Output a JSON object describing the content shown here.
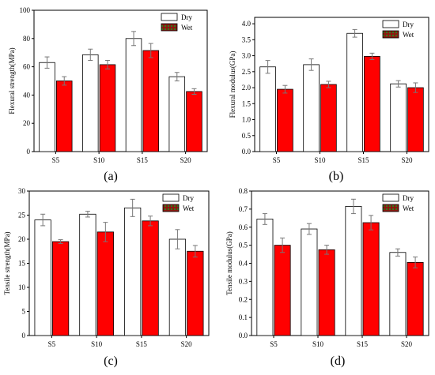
{
  "colors": {
    "dry_fill": "#ffffff",
    "dry_stroke": "#000000",
    "wet_fill": "#ff0000",
    "wet_stroke": "#000000",
    "wet_legend_fill": "#8b1a10",
    "wet_legend_pattern": "#2e7d1f",
    "error_bar": "#777777",
    "artifact_pink": "#f2a0f0",
    "artifact_cyan": "#8ff0f0",
    "axis": "#000000"
  },
  "chart_data": [
    {
      "id": "a",
      "type": "bar",
      "panel_label": "(a)",
      "ylabel": "Flexural strength(MPa)",
      "xlabel": "",
      "categories": [
        "S5",
        "S10",
        "S15",
        "S20"
      ],
      "ylim": [
        0,
        100
      ],
      "yticks": [
        "0",
        "20",
        "40",
        "60",
        "80",
        "100"
      ],
      "series": [
        {
          "name": "Dry",
          "values": [
            63,
            68.5,
            80,
            53
          ],
          "errors": [
            4,
            4,
            5,
            3
          ]
        },
        {
          "name": "Wet",
          "values": [
            50,
            61.5,
            71.5,
            42.5
          ],
          "errors": [
            3,
            3,
            5,
            2
          ]
        }
      ],
      "legend": "top-right",
      "grid": false
    },
    {
      "id": "b",
      "type": "bar",
      "panel_label": "(b)",
      "ylabel": "Flexural modulus(GPa)",
      "xlabel": "",
      "categories": [
        "S5",
        "S10",
        "S15",
        "S20"
      ],
      "ylim": [
        0,
        4.2
      ],
      "yticks": [
        "0.0",
        "0.5",
        "1.0",
        "1.5",
        "2.0",
        "2.5",
        "3.0",
        "3.5",
        "4.0"
      ],
      "series": [
        {
          "name": "Dry",
          "values": [
            2.65,
            2.72,
            3.7,
            2.12
          ],
          "errors": [
            0.2,
            0.18,
            0.12,
            0.1
          ]
        },
        {
          "name": "Wet",
          "values": [
            1.95,
            2.1,
            2.98,
            2.0
          ],
          "errors": [
            0.12,
            0.1,
            0.1,
            0.15
          ]
        }
      ],
      "legend": "top-right",
      "grid": false
    },
    {
      "id": "c",
      "type": "bar",
      "panel_label": "(c)",
      "ylabel": "Tensile strength(MPa)",
      "xlabel": "",
      "categories": [
        "S5",
        "S10",
        "S15",
        "S20"
      ],
      "ylim": [
        0,
        30
      ],
      "yticks": [
        "0",
        "5",
        "10",
        "15",
        "20",
        "25",
        "30"
      ],
      "series": [
        {
          "name": "Dry",
          "values": [
            24,
            25.2,
            26.5,
            20
          ],
          "errors": [
            1.2,
            0.6,
            1.8,
            2
          ]
        },
        {
          "name": "Wet",
          "values": [
            19.5,
            21.5,
            23.8,
            17.5
          ],
          "errors": [
            0.4,
            2,
            1,
            1.2
          ]
        }
      ],
      "legend": "top-right",
      "grid": false
    },
    {
      "id": "d",
      "type": "bar",
      "panel_label": "(d)",
      "ylabel": "Tensile modulus(GPa)",
      "xlabel": "",
      "categories": [
        "S5",
        "S10",
        "S15",
        "S20"
      ],
      "ylim": [
        0,
        0.8
      ],
      "yticks": [
        "0.0",
        "0.1",
        "0.2",
        "0.3",
        "0.4",
        "0.5",
        "0.6",
        "0.7",
        "0.8"
      ],
      "series": [
        {
          "name": "Dry",
          "values": [
            0.645,
            0.59,
            0.715,
            0.46
          ],
          "errors": [
            0.03,
            0.03,
            0.04,
            0.02
          ]
        },
        {
          "name": "Wet",
          "values": [
            0.5,
            0.475,
            0.625,
            0.405
          ],
          "errors": [
            0.04,
            0.025,
            0.04,
            0.03
          ]
        }
      ],
      "legend": "top-right",
      "grid": false
    }
  ]
}
